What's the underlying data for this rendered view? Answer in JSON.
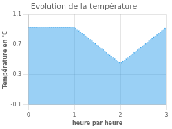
{
  "chart_data": {
    "type": "area",
    "title": "Evolution de la température",
    "xlabel": "heure par heure",
    "ylabel": "Température en °C",
    "x": [
      0,
      1,
      2,
      3
    ],
    "values": [
      0.93,
      0.93,
      0.45,
      0.93
    ],
    "xlim": [
      0,
      3
    ],
    "ylim": [
      -0.1,
      1.1
    ],
    "xticks": [
      0,
      1,
      2,
      3
    ],
    "yticks": [
      -0.1,
      0.3,
      0.7,
      1.1
    ],
    "line_style": "dotted",
    "grid": true
  }
}
